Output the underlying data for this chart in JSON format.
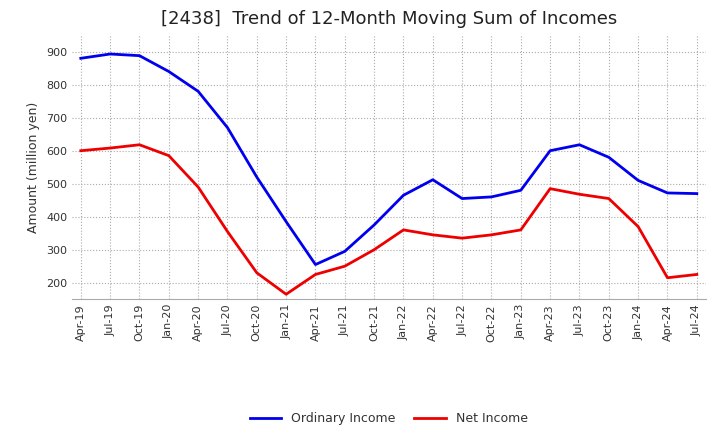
{
  "title": "[2438]  Trend of 12-Month Moving Sum of Incomes",
  "ylabel": "Amount (million yen)",
  "xlabels": [
    "Apr-19",
    "Jul-19",
    "Oct-19",
    "Jan-20",
    "Apr-20",
    "Jul-20",
    "Oct-20",
    "Jan-21",
    "Apr-21",
    "Jul-21",
    "Oct-21",
    "Jan-22",
    "Apr-22",
    "Jul-22",
    "Oct-22",
    "Jan-23",
    "Apr-23",
    "Jul-23",
    "Oct-23",
    "Jan-24",
    "Apr-24",
    "Jul-24"
  ],
  "ordinary_income": [
    880,
    893,
    888,
    840,
    780,
    670,
    520,
    385,
    255,
    295,
    375,
    465,
    512,
    455,
    460,
    480,
    600,
    618,
    580,
    510,
    472,
    470
  ],
  "net_income": [
    600,
    608,
    618,
    585,
    490,
    355,
    230,
    165,
    225,
    250,
    300,
    360,
    345,
    335,
    345,
    360,
    485,
    468,
    455,
    370,
    215,
    225
  ],
  "ordinary_color": "#0000ee",
  "net_color": "#ee0000",
  "ylim": [
    150,
    950
  ],
  "yticks": [
    200,
    300,
    400,
    500,
    600,
    700,
    800,
    900
  ],
  "grid_color": "#aaaaaa",
  "title_fontsize": 13,
  "axis_fontsize": 9,
  "tick_fontsize": 8,
  "legend_fontsize": 9
}
